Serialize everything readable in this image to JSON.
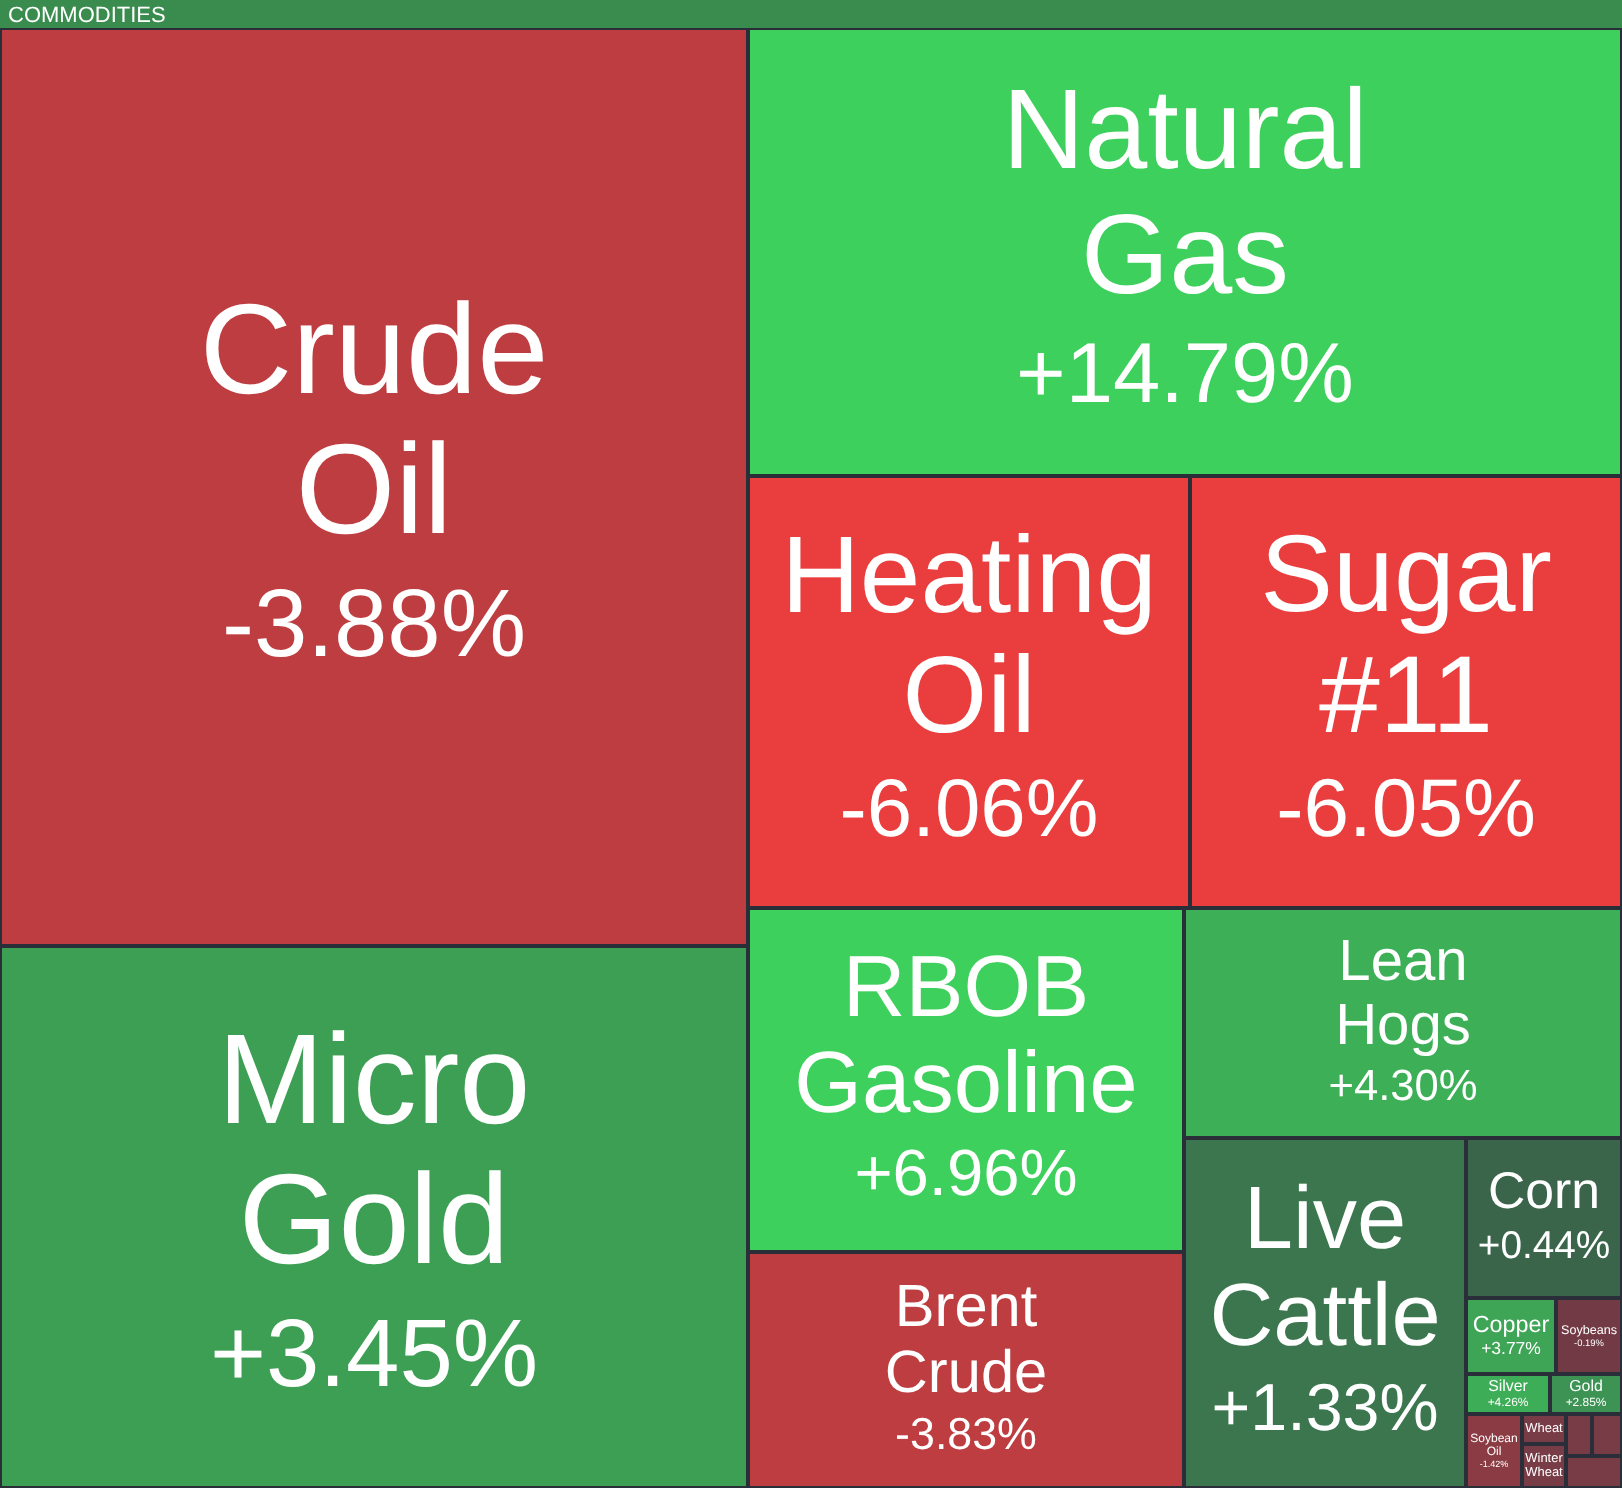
{
  "chart_data": {
    "type": "other",
    "title": "COMMODITIES",
    "categories": [
      "Crude Oil",
      "Micro Gold",
      "Natural Gas",
      "Heating Oil",
      "Sugar #11",
      "RBOB Gasoline",
      "Brent Crude",
      "Lean Hogs",
      "Live Cattle",
      "Corn",
      "Copper",
      "Soybeans",
      "Silver",
      "Gold",
      "Soybean Oil",
      "Wheat",
      "Winter Wheat",
      null,
      null,
      null
    ],
    "values": [
      -3.88,
      3.45,
      14.79,
      -6.06,
      -6.05,
      6.96,
      -3.83,
      4.3,
      1.33,
      0.44,
      3.77,
      -0.19,
      4.26,
      2.85,
      -1.42,
      null,
      null,
      null,
      null,
      null
    ],
    "value_labels": [
      "-3.88%",
      "+3.45%",
      "+14.79%",
      "-6.06%",
      "-6.05%",
      "+6.96%",
      "-3.83%",
      "+4.30%",
      "+1.33%",
      "+0.44%",
      "+3.77%",
      "-0.19%",
      "+4.26%",
      "+2.85%",
      "-1.42%",
      null,
      null,
      null,
      null,
      null
    ]
  }
}
